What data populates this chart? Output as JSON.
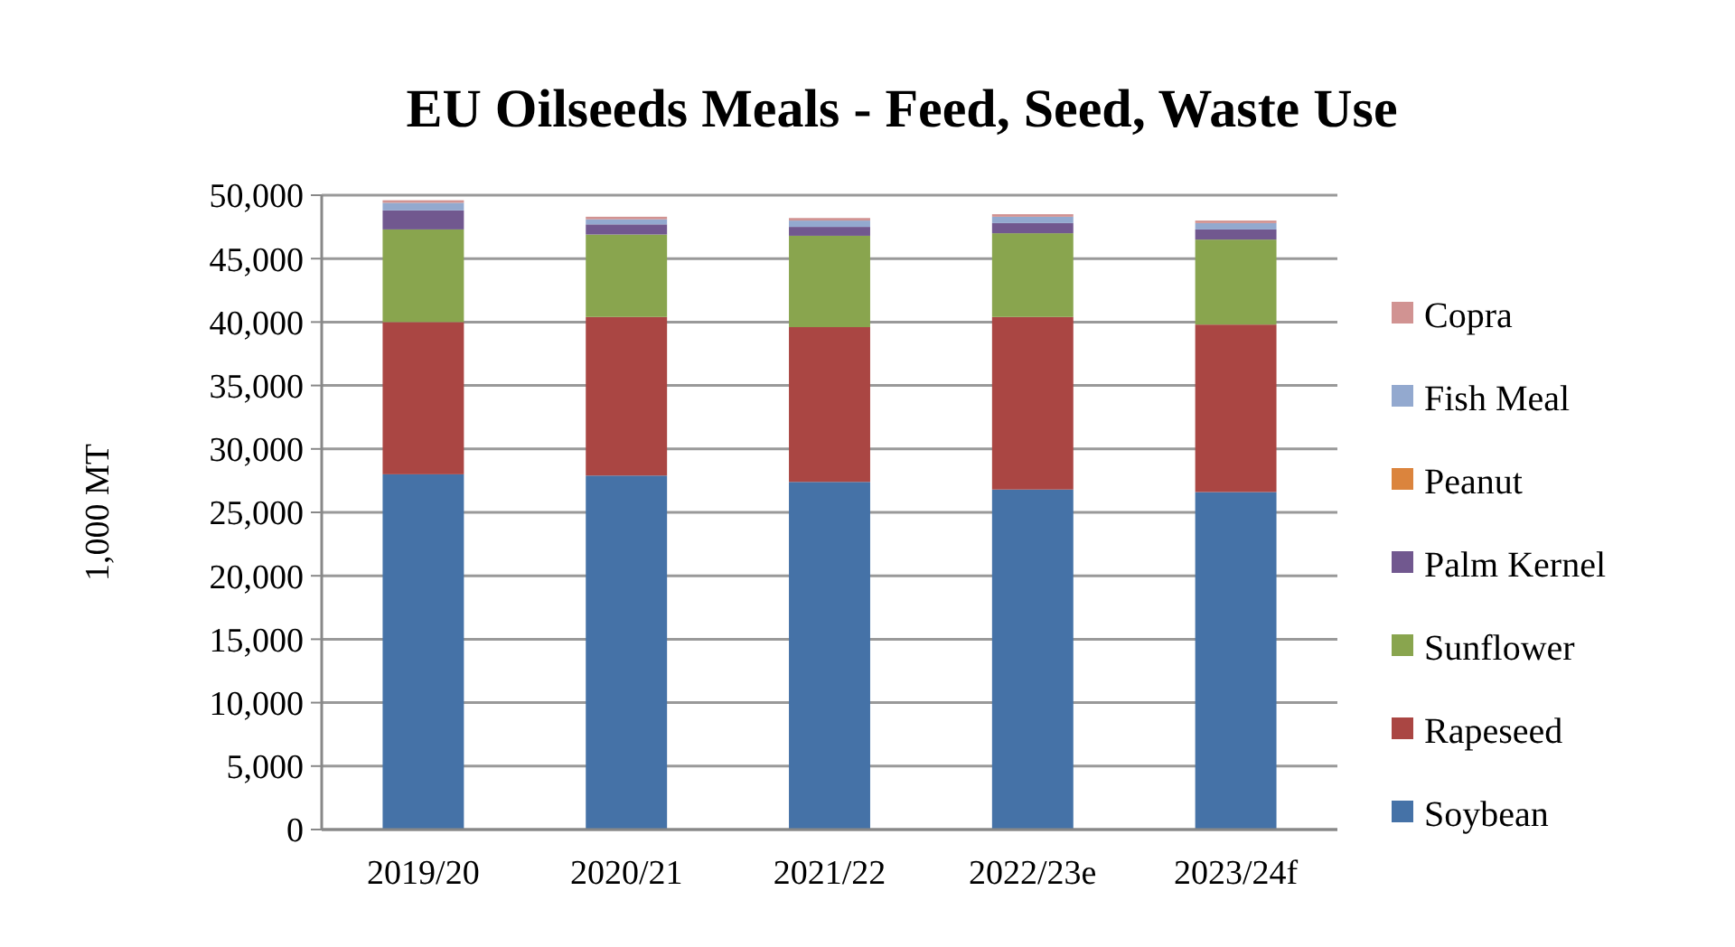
{
  "chart_data": {
    "type": "bar",
    "stacked": true,
    "title": "EU Oilseeds Meals - Feed, Seed, Waste Use",
    "ylabel": "1,000 MT",
    "categories": [
      "2019/20",
      "2020/21",
      "2021/22",
      "2022/23e",
      "2023/24f"
    ],
    "series": [
      {
        "name": "Soybean",
        "color": "#4572a7",
        "values": [
          28000,
          27900,
          27400,
          26800,
          26600
        ]
      },
      {
        "name": "Rapeseed",
        "color": "#aa4643",
        "values": [
          12000,
          12500,
          12200,
          13600,
          13200
        ]
      },
      {
        "name": "Sunflower",
        "color": "#89a54e",
        "values": [
          7300,
          6500,
          7200,
          6600,
          6700
        ]
      },
      {
        "name": "Palm Kernel",
        "color": "#71588f",
        "values": [
          1500,
          800,
          700,
          800,
          800
        ]
      },
      {
        "name": "Peanut",
        "color": "#db843d",
        "values": [
          null,
          null,
          null,
          null,
          null
        ]
      },
      {
        "name": "Fish Meal",
        "color": "#93a9cf",
        "values": [
          600,
          400,
          500,
          500,
          500
        ]
      },
      {
        "name": "Copra",
        "color": "#d19392",
        "values": [
          200,
          200,
          200,
          200,
          200
        ]
      }
    ],
    "ylim": [
      0,
      50000
    ],
    "yticks": [
      {
        "value": 0,
        "label": "0"
      },
      {
        "value": 5000,
        "label": "5,000"
      },
      {
        "value": 10000,
        "label": "10,000"
      },
      {
        "value": 15000,
        "label": "15,000"
      },
      {
        "value": 20000,
        "label": "20,000"
      },
      {
        "value": 25000,
        "label": "25,000"
      },
      {
        "value": 30000,
        "label": "30,000"
      },
      {
        "value": 35000,
        "label": "35,000"
      },
      {
        "value": 40000,
        "label": "40,000"
      },
      {
        "value": 45000,
        "label": "45,000"
      },
      {
        "value": 50000,
        "label": "50,000"
      }
    ],
    "grid": "y",
    "legend": "right"
  }
}
